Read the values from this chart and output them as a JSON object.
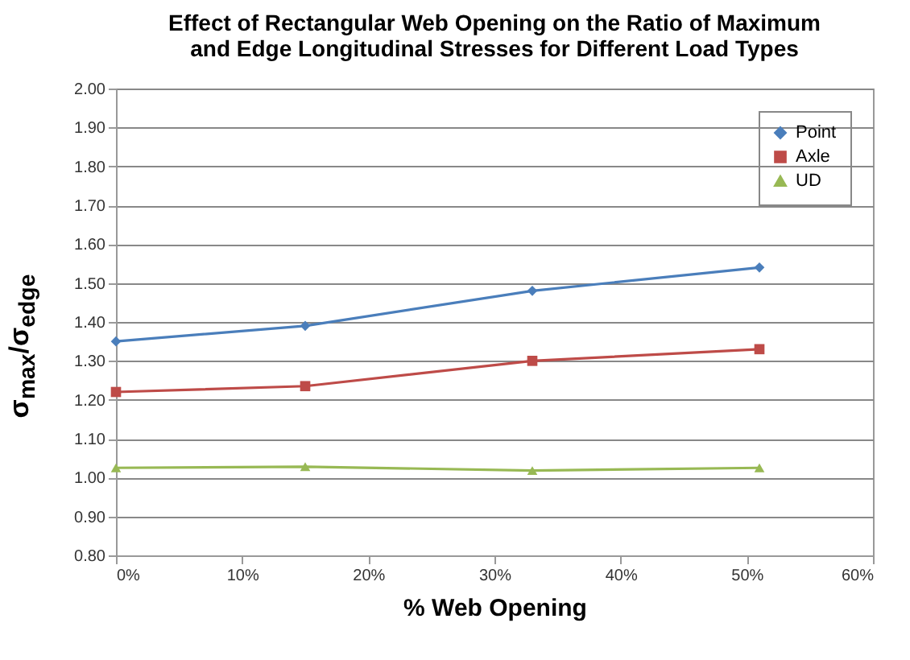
{
  "chart_data": {
    "type": "line",
    "title": "Effect of Rectangular Web Opening on the Ratio of Maximum and Edge Longitudinal Stresses for Different Load Types",
    "xlabel": "% Web Opening",
    "ylabel": "σ$_{max}$/σ$_{edge}$",
    "x": [
      0,
      15,
      33,
      51
    ],
    "series": [
      {
        "name": "Point",
        "color": "#4a7ebb",
        "marker": "diamond",
        "values": [
          1.35,
          1.39,
          1.48,
          1.54
        ]
      },
      {
        "name": "Axle",
        "color": "#be4b48",
        "marker": "square",
        "values": [
          1.22,
          1.235,
          1.3,
          1.33
        ]
      },
      {
        "name": "UD",
        "color": "#98b954",
        "marker": "triangle",
        "values": [
          1.025,
          1.028,
          1.018,
          1.025
        ]
      }
    ],
    "xlim": [
      0,
      60
    ],
    "xticks": [
      {
        "value": 0,
        "label": "0%"
      },
      {
        "value": 10,
        "label": "10%"
      },
      {
        "value": 20,
        "label": "20%"
      },
      {
        "value": 30,
        "label": "30%"
      },
      {
        "value": 40,
        "label": "40%"
      },
      {
        "value": 50,
        "label": "50%"
      },
      {
        "value": 60,
        "label": "60%"
      }
    ],
    "ylim": [
      0.8,
      2.0
    ],
    "yticks": [
      {
        "value": 0.8,
        "label": "0.80"
      },
      {
        "value": 0.9,
        "label": "0.90"
      },
      {
        "value": 1.0,
        "label": "1.00"
      },
      {
        "value": 1.1,
        "label": "1.10"
      },
      {
        "value": 1.2,
        "label": "1.20"
      },
      {
        "value": 1.3,
        "label": "1.30"
      },
      {
        "value": 1.4,
        "label": "1.40"
      },
      {
        "value": 1.5,
        "label": "1.50"
      },
      {
        "value": 1.6,
        "label": "1.60"
      },
      {
        "value": 1.7,
        "label": "1.70"
      },
      {
        "value": 1.8,
        "label": "1.80"
      },
      {
        "value": 1.9,
        "label": "1.90"
      },
      {
        "value": 2.0,
        "label": "2.00"
      }
    ],
    "grid": "y",
    "legend": "top right"
  }
}
